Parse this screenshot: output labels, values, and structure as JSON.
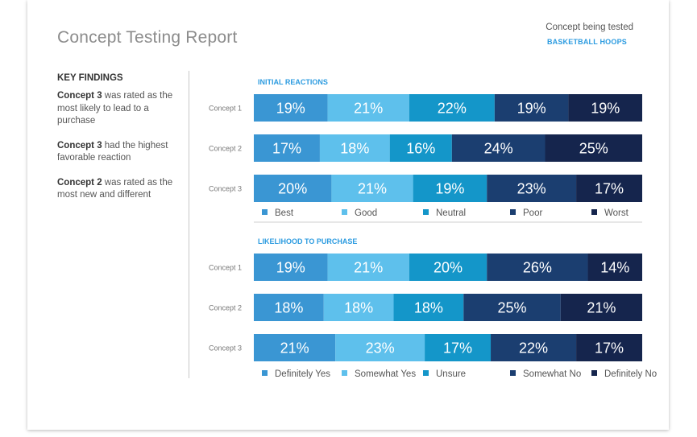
{
  "report": {
    "title": "Concept Testing Report",
    "concept_label": "Concept being tested",
    "concept_value": "BASKETBALL HOOPS"
  },
  "key_findings": {
    "heading": "KEY FINDINGS",
    "items": [
      {
        "bold": "Concept 3",
        "text": " was rated as the most likely to lead to a purchase"
      },
      {
        "bold": "Concept 3",
        "text": " had the highest favorable reaction"
      },
      {
        "bold": "Concept 2",
        "text": " was rated as the most new and different"
      }
    ]
  },
  "colors": [
    "#3a96d3",
    "#5ec0ec",
    "#1496c9",
    "#1b3e70",
    "#15254d"
  ],
  "chart_data": [
    {
      "type": "bar",
      "stacked": true,
      "orientation": "horizontal",
      "title": "INITIAL REACTIONS",
      "categories": [
        "Concept 1",
        "Concept 2",
        "Concept 3"
      ],
      "series": [
        {
          "name": "Best",
          "values": [
            19,
            17,
            20
          ]
        },
        {
          "name": "Good",
          "values": [
            21,
            18,
            21
          ]
        },
        {
          "name": "Neutral",
          "values": [
            22,
            16,
            19
          ]
        },
        {
          "name": "Poor",
          "values": [
            19,
            24,
            23
          ]
        },
        {
          "name": "Worst",
          "values": [
            19,
            25,
            17
          ]
        }
      ],
      "unit": "%",
      "legend": "bottom"
    },
    {
      "type": "bar",
      "stacked": true,
      "orientation": "horizontal",
      "title": "LIKELIHOOD TO PURCHASE",
      "categories": [
        "Concept 1",
        "Concept 2",
        "Concept 3"
      ],
      "series": [
        {
          "name": "Definitely Yes",
          "values": [
            19,
            18,
            21
          ]
        },
        {
          "name": "Somewhat Yes",
          "values": [
            21,
            18,
            23
          ]
        },
        {
          "name": "Unsure",
          "values": [
            20,
            18,
            17
          ]
        },
        {
          "name": "Somewhat No",
          "values": [
            26,
            25,
            22
          ]
        },
        {
          "name": "Definitely No",
          "values": [
            14,
            21,
            17
          ]
        }
      ],
      "unit": "%",
      "legend": "bottom"
    }
  ]
}
